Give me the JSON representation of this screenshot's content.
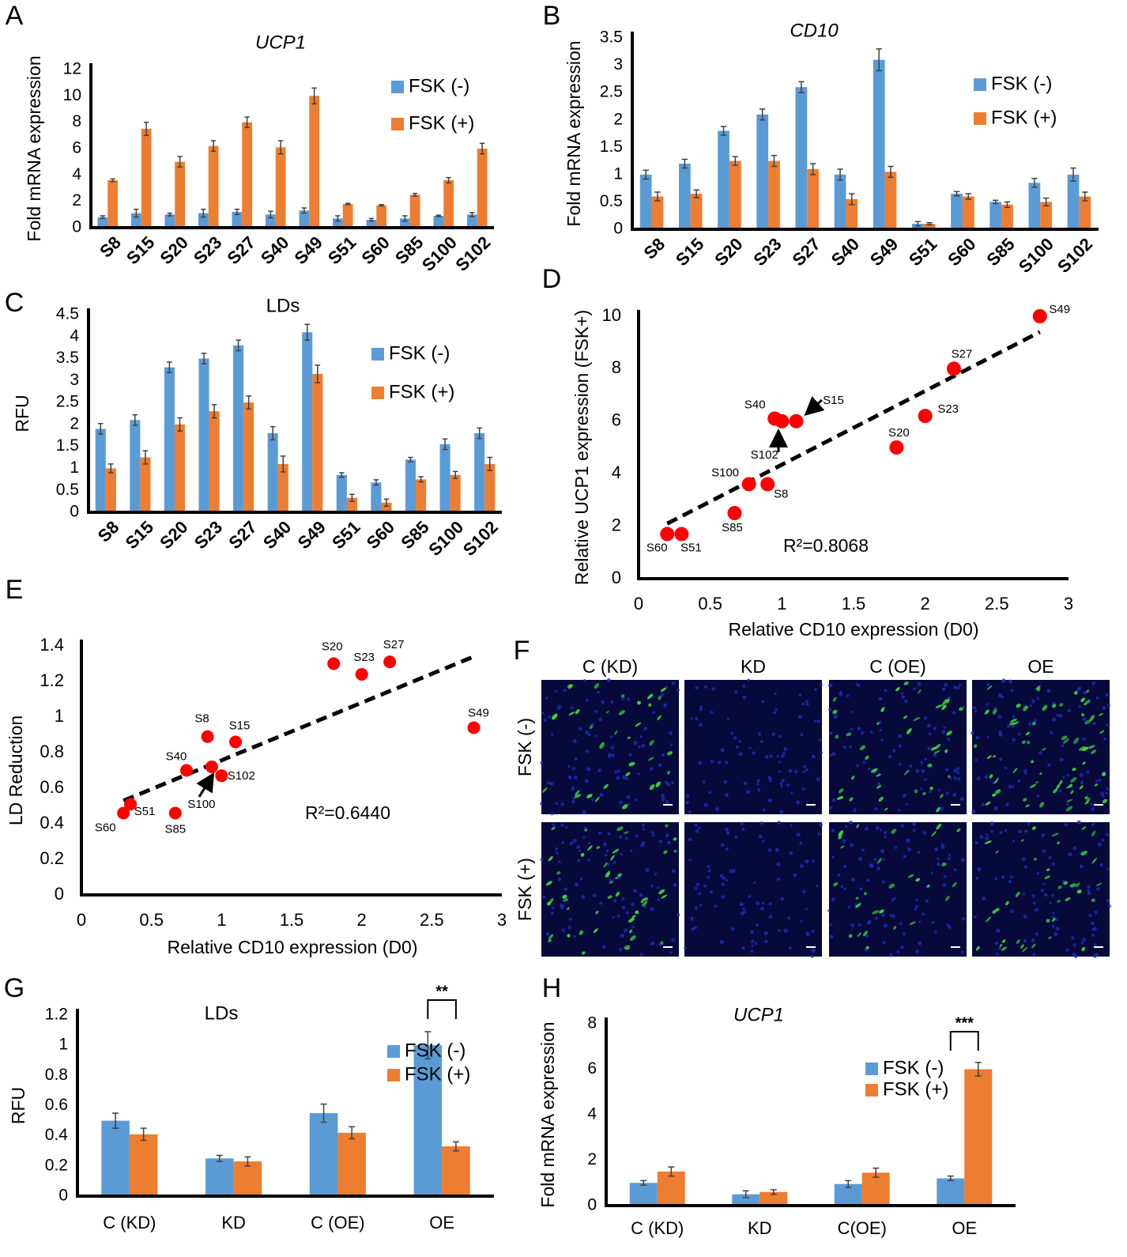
{
  "chart_data": [
    {
      "type": "bar",
      "label": "A",
      "title": "UCP1",
      "title_italic": true,
      "y_label": "Fold mRNA expression",
      "categories": [
        "S8",
        "S15",
        "S20",
        "S23",
        "S27",
        "S40",
        "S49",
        "S51",
        "S60",
        "S85",
        "S100",
        "S102"
      ],
      "series": [
        {
          "name": "FSK (-)",
          "color": "#5b9bd5",
          "values": [
            0.8,
            1.1,
            1.0,
            1.1,
            1.2,
            1.0,
            1.3,
            0.7,
            0.6,
            0.7,
            0.9,
            1.0
          ],
          "errors": [
            0.1,
            0.3,
            0.1,
            0.3,
            0.2,
            0.25,
            0.2,
            0.2,
            0.1,
            0.2,
            0.05,
            0.15
          ]
        },
        {
          "name": "FSK (+)",
          "color": "#ed7d31",
          "values": [
            3.6,
            7.5,
            5.0,
            6.2,
            8.0,
            6.1,
            10.0,
            1.8,
            1.7,
            2.5,
            3.6,
            6.0
          ],
          "errors": [
            0.1,
            0.5,
            0.4,
            0.4,
            0.4,
            0.5,
            0.6,
            0.05,
            0.05,
            0.1,
            0.2,
            0.4
          ]
        }
      ],
      "ylim": [
        0,
        12
      ],
      "yticks": [
        0,
        2,
        4,
        6,
        8,
        10,
        12
      ]
    },
    {
      "type": "bar",
      "label": "B",
      "title": "CD10",
      "title_italic": true,
      "y_label": "Fold mRNA expression",
      "categories": [
        "S8",
        "S15",
        "S20",
        "S23",
        "S27",
        "S40",
        "S49",
        "S51",
        "S60",
        "S85",
        "S100",
        "S102"
      ],
      "series": [
        {
          "name": "FSK (-)",
          "color": "#5b9bd5",
          "values": [
            1.0,
            1.2,
            1.8,
            2.1,
            2.6,
            1.0,
            3.1,
            0.1,
            0.65,
            0.5,
            0.85,
            1.0
          ],
          "errors": [
            0.08,
            0.08,
            0.08,
            0.1,
            0.1,
            0.1,
            0.2,
            0.04,
            0.04,
            0.03,
            0.08,
            0.12
          ]
        },
        {
          "name": "FSK (+)",
          "color": "#ed7d31",
          "values": [
            0.6,
            0.65,
            1.25,
            1.25,
            1.1,
            0.55,
            1.05,
            0.1,
            0.6,
            0.45,
            0.5,
            0.6
          ],
          "errors": [
            0.08,
            0.07,
            0.08,
            0.1,
            0.1,
            0.1,
            0.1,
            0.02,
            0.05,
            0.05,
            0.07,
            0.08
          ]
        }
      ],
      "ylim": [
        0,
        3.5
      ],
      "yticks": [
        0,
        0.5,
        1,
        1.5,
        2,
        2.5,
        3,
        3.5
      ]
    },
    {
      "type": "bar",
      "label": "C",
      "title": "LDs",
      "title_italic": false,
      "y_label": "RFU",
      "categories": [
        "S8",
        "S15",
        "S20",
        "S23",
        "S27",
        "S40",
        "S49",
        "S51",
        "S60",
        "S85",
        "S100",
        "S102"
      ],
      "series": [
        {
          "name": "FSK (-)",
          "color": "#5b9bd5",
          "values": [
            1.9,
            2.1,
            3.3,
            3.5,
            3.8,
            1.8,
            4.1,
            0.85,
            0.68,
            1.2,
            1.55,
            1.8
          ],
          "errors": [
            0.12,
            0.12,
            0.12,
            0.12,
            0.12,
            0.15,
            0.18,
            0.05,
            0.06,
            0.05,
            0.12,
            0.12
          ]
        },
        {
          "name": "FSK (+)",
          "color": "#ed7d31",
          "values": [
            1.0,
            1.25,
            2.0,
            2.3,
            2.5,
            1.1,
            3.15,
            0.33,
            0.22,
            0.75,
            0.85,
            1.1
          ],
          "errors": [
            0.1,
            0.15,
            0.15,
            0.15,
            0.15,
            0.18,
            0.2,
            0.08,
            0.08,
            0.06,
            0.08,
            0.15
          ]
        }
      ],
      "ylim": [
        0,
        4.5
      ],
      "yticks": [
        0,
        0.5,
        1,
        1.5,
        2,
        2.5,
        3,
        3.5,
        4,
        4.5
      ]
    },
    {
      "type": "scatter",
      "label": "D",
      "x_label": "Relative CD10 expression (D0)",
      "y_label": "Relative UCP1 expression (FSK+)",
      "labels": [
        "S8",
        "S15",
        "S20",
        "S23",
        "S27",
        "S40",
        "S49",
        "S51",
        "S60",
        "S85",
        "S100",
        "S102"
      ],
      "x": [
        0.9,
        1.1,
        1.8,
        2.0,
        2.2,
        0.95,
        2.8,
        0.3,
        0.2,
        0.67,
        0.77,
        1.0
      ],
      "y": [
        3.6,
        6.0,
        5.0,
        6.2,
        8.0,
        6.1,
        10.0,
        1.7,
        1.7,
        2.5,
        3.6,
        6.0
      ],
      "color": "#ff0000",
      "trendline": {
        "x": [
          0.2,
          2.8
        ],
        "y": [
          2.1,
          9.4
        ]
      },
      "annotation": "R²=0.8068",
      "xlim": [
        0,
        3
      ],
      "xticks": [
        0,
        0.5,
        1,
        1.5,
        2,
        2.5,
        3
      ],
      "ylim": [
        0,
        10
      ],
      "yticks": [
        0,
        2,
        4,
        6,
        8,
        10
      ]
    },
    {
      "type": "scatter",
      "label": "E",
      "x_label": "Relative CD10 expression (D0)",
      "y_label": "LD Reduction",
      "labels": [
        "S8",
        "S15",
        "S20",
        "S23",
        "S27",
        "S40",
        "S49",
        "S51",
        "S60",
        "S85",
        "S100",
        "S102"
      ],
      "x": [
        0.9,
        1.1,
        1.8,
        2.0,
        2.2,
        0.75,
        2.8,
        0.35,
        0.3,
        0.67,
        0.93,
        1.0
      ],
      "y": [
        0.89,
        0.86,
        1.3,
        1.24,
        1.31,
        0.7,
        0.94,
        0.51,
        0.46,
        0.46,
        0.72,
        0.67
      ],
      "color": "#ff0000",
      "trendline": {
        "x": [
          0.3,
          2.8
        ],
        "y": [
          0.53,
          1.34
        ]
      },
      "annotation": "R²=0.6440",
      "xlim": [
        0,
        3
      ],
      "xticks": [
        0,
        0.5,
        1,
        1.5,
        2,
        2.5,
        3
      ],
      "ylim": [
        0,
        1.4
      ],
      "yticks": [
        0,
        0.2,
        0.4,
        0.6,
        0.8,
        1,
        1.2,
        1.4
      ]
    },
    {
      "type": "bar",
      "label": "G",
      "title": "LDs",
      "title_italic": false,
      "y_label": "RFU",
      "categories": [
        "C (KD)",
        "KD",
        "C (OE)",
        "OE"
      ],
      "series": [
        {
          "name": "FSK (-)",
          "color": "#5b9bd5",
          "values": [
            0.5,
            0.25,
            0.55,
            1.0
          ],
          "errors": [
            0.05,
            0.02,
            0.06,
            0.09
          ]
        },
        {
          "name": "FSK (+)",
          "color": "#ed7d31",
          "values": [
            0.41,
            0.23,
            0.42,
            0.33
          ],
          "errors": [
            0.04,
            0.03,
            0.04,
            0.03
          ]
        }
      ],
      "significance": "**",
      "ylim": [
        0,
        1.2
      ],
      "yticks": [
        0,
        0.2,
        0.4,
        0.6,
        0.8,
        1,
        1.2
      ]
    },
    {
      "type": "bar",
      "label": "H",
      "title": "UCP1",
      "title_italic": true,
      "y_label": "Fold mRNA expression",
      "categories": [
        "C (KD)",
        "KD",
        "C(OE)",
        "OE"
      ],
      "series": [
        {
          "name": "FSK (-)",
          "color": "#5b9bd5",
          "values": [
            1.0,
            0.5,
            0.95,
            1.2
          ],
          "errors": [
            0.1,
            0.15,
            0.15,
            0.1
          ]
        },
        {
          "name": "FSK (+)",
          "color": "#ed7d31",
          "values": [
            1.5,
            0.6,
            1.45,
            6.0
          ],
          "errors": [
            0.2,
            0.1,
            0.2,
            0.3
          ]
        }
      ],
      "significance": "***",
      "ylim": [
        0,
        8
      ],
      "yticks": [
        0,
        2,
        4,
        6,
        8
      ]
    }
  ],
  "image_panel": {
    "label": "F",
    "columns": [
      "C (KD)",
      "KD",
      "C (OE)",
      "OE"
    ],
    "rows": [
      "FSK (-)",
      "FSK (+)"
    ]
  }
}
